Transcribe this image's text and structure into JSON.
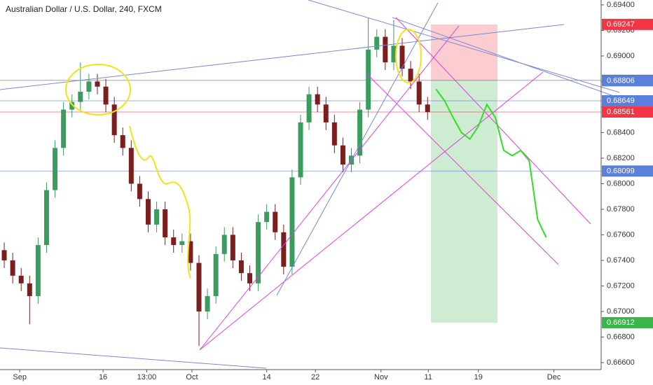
{
  "chart_data": {
    "type": "candlestick",
    "title": "Australian Dollar / U.S. Dollar, 240, FXCM",
    "x": [
      0,
      1,
      2,
      3,
      4,
      5,
      6,
      7,
      8,
      9,
      10,
      11,
      12,
      13,
      14,
      15,
      16,
      17,
      18,
      19,
      20,
      21,
      22,
      23,
      24,
      25,
      26,
      27,
      28,
      29,
      30,
      31,
      32,
      33,
      34,
      35,
      36,
      37,
      38,
      39,
      40,
      41,
      42,
      43,
      44,
      45,
      46,
      47,
      48,
      49,
      50
    ],
    "open": [
      0.6748,
      0.674,
      0.6728,
      0.6722,
      0.6712,
      0.6752,
      0.6795,
      0.6828,
      0.6858,
      0.6864,
      0.6872,
      0.688,
      0.6876,
      0.6862,
      0.6838,
      0.6828,
      0.68,
      0.6788,
      0.6768,
      0.678,
      0.6758,
      0.6752,
      0.6755,
      0.6738,
      0.67,
      0.6712,
      0.6745,
      0.676,
      0.674,
      0.673,
      0.6722,
      0.677,
      0.6778,
      0.6762,
      0.6735,
      0.6805,
      0.6848,
      0.687,
      0.6862,
      0.6848,
      0.683,
      0.6815,
      0.6822,
      0.6858,
      0.6905,
      0.6915,
      0.6895,
      0.6908,
      0.689,
      0.688,
      0.6862
    ],
    "high": [
      0.6754,
      0.6746,
      0.6734,
      0.6728,
      0.6758,
      0.6801,
      0.6834,
      0.6864,
      0.687,
      0.6895,
      0.6886,
      0.6886,
      0.6882,
      0.6868,
      0.6844,
      0.6834,
      0.6806,
      0.6794,
      0.6786,
      0.6786,
      0.6764,
      0.6761,
      0.6761,
      0.6744,
      0.6718,
      0.6751,
      0.6766,
      0.6766,
      0.6746,
      0.6736,
      0.6776,
      0.6784,
      0.6784,
      0.6768,
      0.6811,
      0.6854,
      0.6876,
      0.6876,
      0.6868,
      0.6854,
      0.6836,
      0.6828,
      0.6864,
      0.693,
      0.6921,
      0.6921,
      0.6928,
      0.6914,
      0.6896,
      0.6886,
      0.6868
    ],
    "low": [
      0.6734,
      0.6722,
      0.6716,
      0.669,
      0.6706,
      0.6746,
      0.6789,
      0.6822,
      0.6852,
      0.6858,
      0.6866,
      0.687,
      0.6856,
      0.6832,
      0.6822,
      0.6794,
      0.6782,
      0.6762,
      0.6762,
      0.6752,
      0.6746,
      0.6746,
      0.6732,
      0.6673,
      0.6694,
      0.6706,
      0.6739,
      0.6734,
      0.6724,
      0.6716,
      0.6716,
      0.6764,
      0.6756,
      0.6729,
      0.6729,
      0.6799,
      0.6842,
      0.6856,
      0.6842,
      0.6824,
      0.6809,
      0.6809,
      0.6816,
      0.6852,
      0.6899,
      0.6889,
      0.6889,
      0.6884,
      0.6874,
      0.6856,
      0.685
    ],
    "close": [
      0.674,
      0.6728,
      0.6722,
      0.6712,
      0.6752,
      0.6795,
      0.6828,
      0.6858,
      0.6864,
      0.6872,
      0.688,
      0.6876,
      0.6862,
      0.6838,
      0.6828,
      0.68,
      0.6788,
      0.6768,
      0.678,
      0.6758,
      0.6752,
      0.6755,
      0.6738,
      0.67,
      0.6712,
      0.6745,
      0.676,
      0.674,
      0.673,
      0.6722,
      0.677,
      0.6778,
      0.6762,
      0.6735,
      0.6805,
      0.6848,
      0.687,
      0.6862,
      0.6848,
      0.683,
      0.6815,
      0.6822,
      0.6858,
      0.6905,
      0.6915,
      0.6895,
      0.6908,
      0.689,
      0.688,
      0.6862,
      0.6856
    ],
    "up_color": "#3a9d5d",
    "down_color": "#7b1e1e",
    "projection": {
      "x": [
        51,
        52,
        53,
        54,
        55,
        56,
        57,
        58,
        59,
        60,
        61,
        62,
        63,
        64
      ],
      "values": [
        0.6874,
        0.6865,
        0.6852,
        0.684,
        0.6835,
        0.6845,
        0.6862,
        0.6852,
        0.6826,
        0.6822,
        0.6826,
        0.6818,
        0.6772,
        0.6758
      ],
      "color": "#33dd22"
    },
    "levels": [
      {
        "value": 0.69247,
        "color": "#f23645",
        "line": false
      },
      {
        "value": 0.68809,
        "color": "#5d606b",
        "line": true
      },
      {
        "value": 0.68806,
        "color": "#5b7fdd",
        "line": false
      },
      {
        "value": 0.68649,
        "color": "#5b7fdd",
        "line": true
      },
      {
        "value": 0.68561,
        "color": "#f23645",
        "line": true
      },
      {
        "value": 0.68099,
        "color": "#5b7fdd",
        "line": true
      },
      {
        "value": 0.66912,
        "color": "#3bb54a",
        "line": false
      }
    ],
    "xlim": [
      -0.5,
      70.5
    ],
    "xticks": [
      {
        "value": 1.83,
        "label": "Sep"
      },
      {
        "value": 11.67,
        "label": "16"
      },
      {
        "value": 16.83,
        "label": "13:00"
      },
      {
        "value": 22.17,
        "label": "Oct"
      },
      {
        "value": 31,
        "label": "14"
      },
      {
        "value": 36.75,
        "label": "22"
      },
      {
        "value": 44.5,
        "label": "Nov"
      },
      {
        "value": 50.08,
        "label": "11"
      },
      {
        "value": 56,
        "label": "19"
      },
      {
        "value": 64.92,
        "label": "Dec"
      }
    ],
    "ylim": [
      0.66545,
      0.69438
    ],
    "yticks": [
      {
        "value": 0.666,
        "label": "0.66600"
      },
      {
        "value": 0.668,
        "label": "0.66800"
      },
      {
        "value": 0.67,
        "label": "0.67000"
      },
      {
        "value": 0.672,
        "label": "0.67200"
      },
      {
        "value": 0.674,
        "label": "0.67400"
      },
      {
        "value": 0.676,
        "label": "0.67600"
      },
      {
        "value": 0.678,
        "label": "0.67800"
      },
      {
        "value": 0.68,
        "label": "0.68000"
      },
      {
        "value": 0.682,
        "label": "0.68200"
      },
      {
        "value": 0.684,
        "label": "0.68400"
      },
      {
        "value": 0.686,
        "label": "0.68600"
      },
      {
        "value": 0.688,
        "label": "0.68800"
      },
      {
        "value": 0.69,
        "label": "0.69000"
      },
      {
        "value": 0.692,
        "label": "0.69200"
      },
      {
        "value": 0.694,
        "label": "0.69400"
      }
    ]
  }
}
